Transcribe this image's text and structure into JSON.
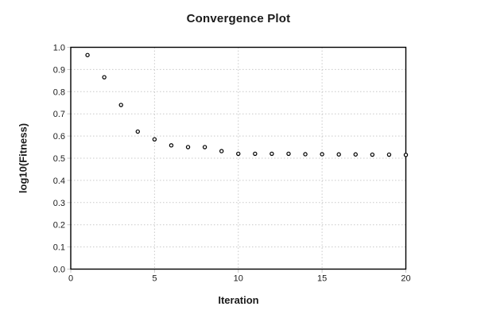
{
  "chart_data": {
    "type": "scatter",
    "title": "Convergence Plot",
    "xlabel": "Iteration",
    "ylabel": "log10(Fitness)",
    "x": [
      1,
      2,
      3,
      4,
      5,
      6,
      7,
      8,
      9,
      10,
      11,
      12,
      13,
      14,
      15,
      16,
      17,
      18,
      19,
      20
    ],
    "y": [
      0.965,
      0.865,
      0.74,
      0.62,
      0.585,
      0.558,
      0.55,
      0.55,
      0.532,
      0.52,
      0.52,
      0.52,
      0.52,
      0.518,
      0.518,
      0.517,
      0.517,
      0.516,
      0.516,
      0.515
    ],
    "xlim": [
      0,
      20
    ],
    "ylim": [
      0.0,
      1.0
    ],
    "xtick_values": [
      0,
      5,
      10,
      15,
      20
    ],
    "xtick_labels": [
      "0",
      "5",
      "10",
      "15",
      "20"
    ],
    "ytick_values": [
      0.0,
      0.1,
      0.2,
      0.3,
      0.4,
      0.5,
      0.6,
      0.7,
      0.8,
      0.9,
      1.0
    ],
    "ytick_labels": [
      "0.0",
      "0.1",
      "0.2",
      "0.3",
      "0.4",
      "0.5",
      "0.6",
      "0.7",
      "0.8",
      "0.9",
      "1.0"
    ],
    "grid": true,
    "legend": "none",
    "marker": "open-circle",
    "colors": {
      "background": "#ffffff",
      "axis_frame": "#000000",
      "grid": "#c9c9c9",
      "marker_stroke": "#000000",
      "marker_fill": "#ffffff",
      "text": "#1a1a1a"
    }
  }
}
